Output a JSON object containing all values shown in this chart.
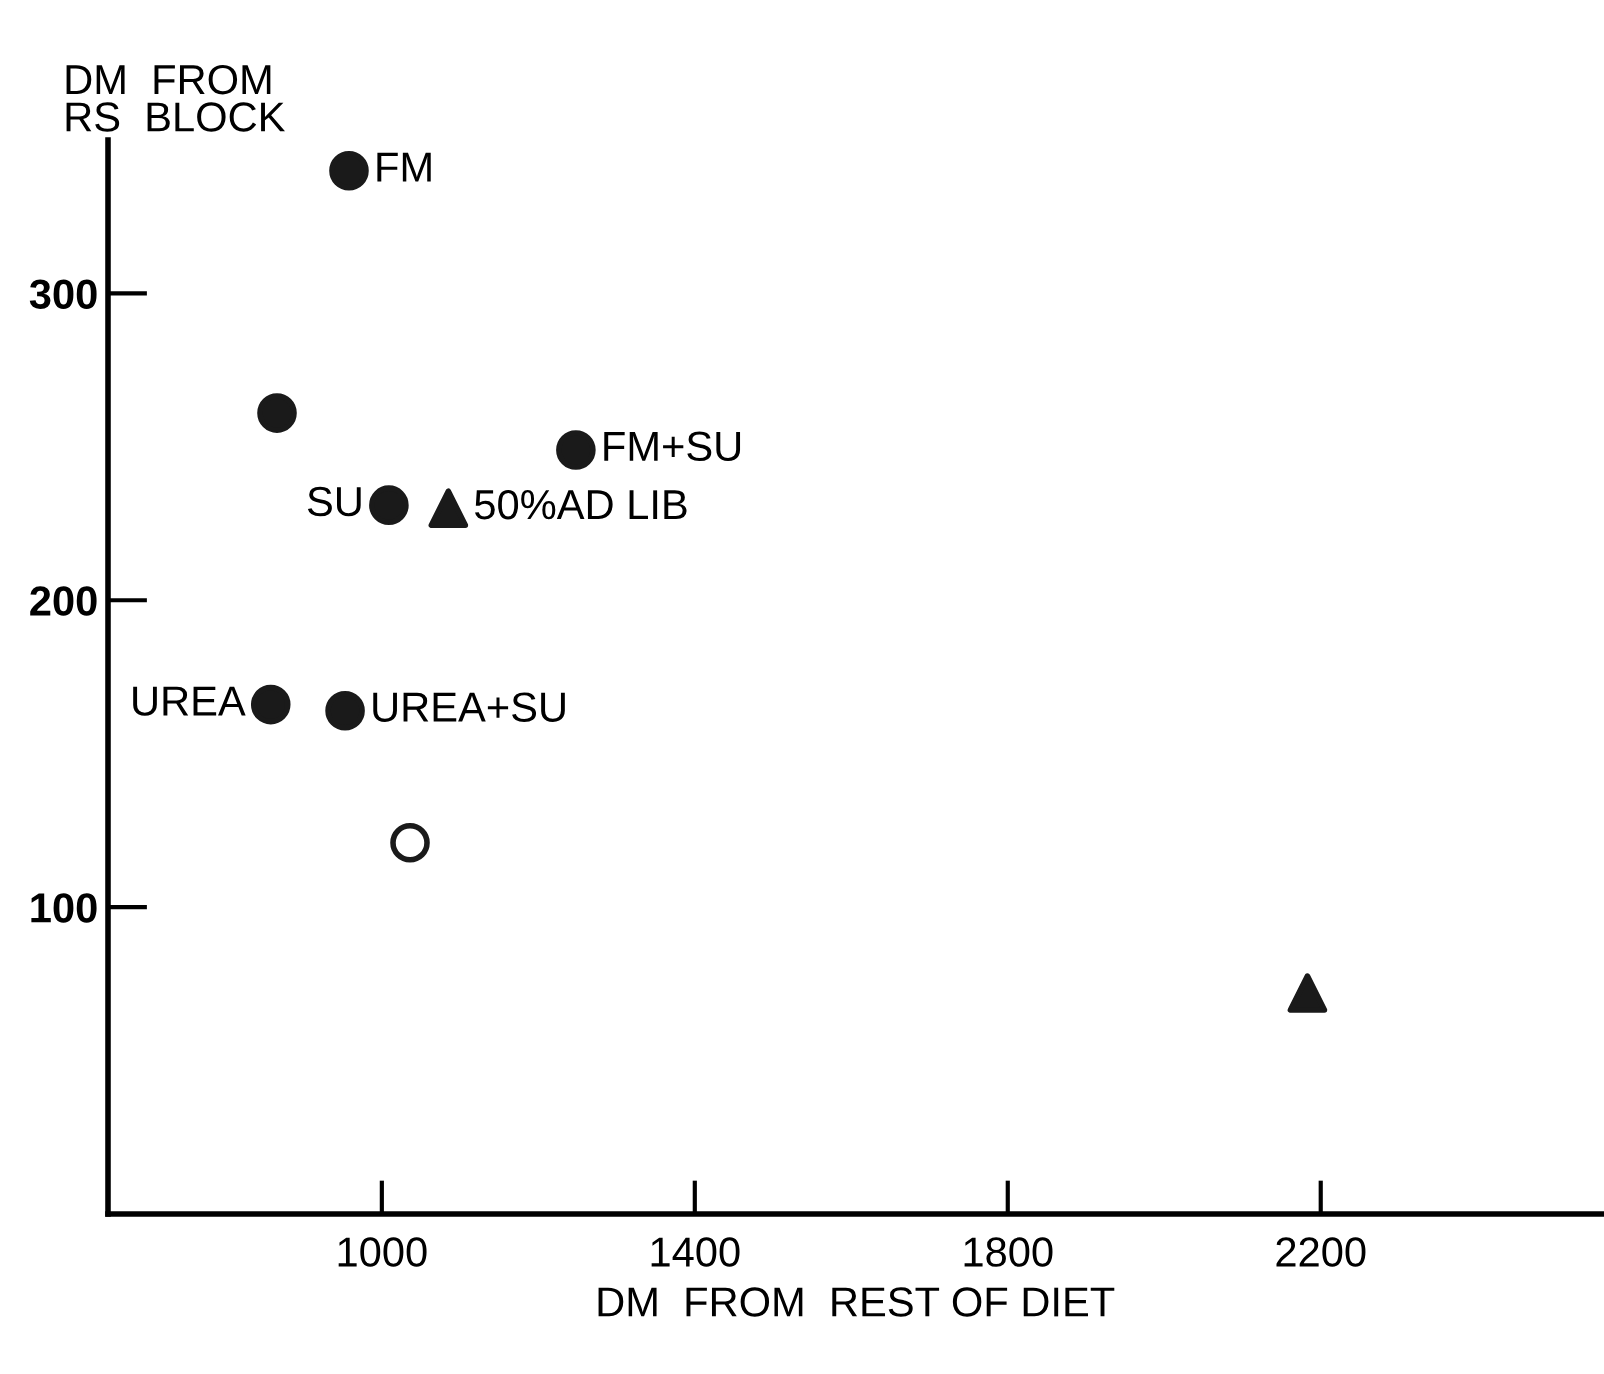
{
  "chart_data": {
    "type": "scatter",
    "xlabel": "DM  FROM  REST OF DIET",
    "ylabel": "DM  FROM\nRS  BLOCK",
    "xlim": [
      650,
      2560
    ],
    "ylim": [
      0,
      350
    ],
    "xticks": [
      1000,
      1400,
      1800,
      2200
    ],
    "yticks": [
      100,
      200,
      300
    ],
    "grid": false,
    "series": [
      {
        "color": "#1a1a1a",
        "marker": "circle",
        "x": [
          958,
          866,
          1248,
          1009,
          858,
          953
        ],
        "values": [
          340,
          261,
          249,
          231,
          166,
          164
        ]
      },
      {
        "color": "#ffffff",
        "marker": "circle",
        "x": [
          1036
        ],
        "values": [
          121
        ]
      },
      {
        "color": "#1a1a1a",
        "marker": "triangle",
        "x": [
          1085,
          2183
        ],
        "values": [
          230,
          72
        ]
      }
    ],
    "annotations": [
      {
        "text": "FM",
        "x": 958,
        "y": 340
      },
      {
        "text": "FM+SU",
        "x": 1248,
        "y": 249
      },
      {
        "text": "SU",
        "x": 1009,
        "y": 231
      },
      {
        "text": "50%AD LIB",
        "x": 1085,
        "y": 230
      },
      {
        "text": "UREA",
        "x": 858,
        "y": 166
      },
      {
        "text": "UREA+SU",
        "x": 953,
        "y": 164
      }
    ]
  }
}
